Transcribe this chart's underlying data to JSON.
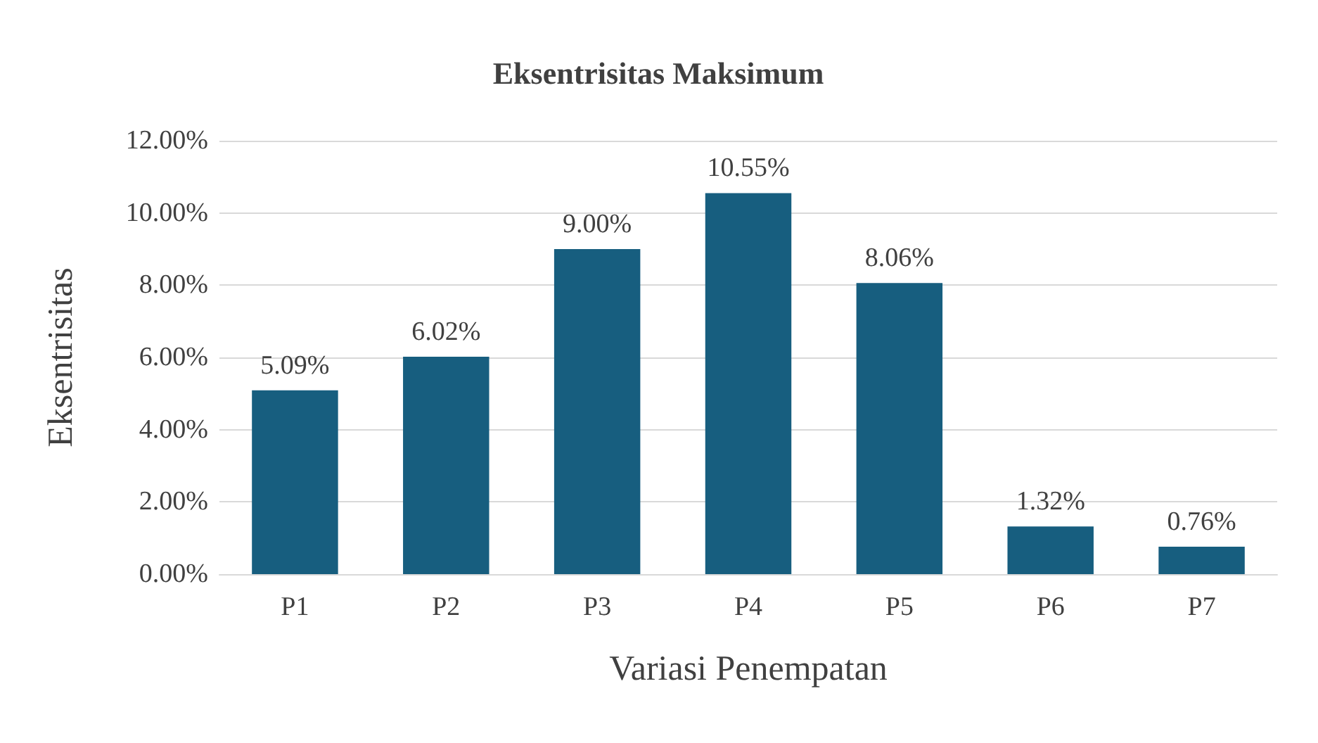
{
  "chart_data": {
    "type": "bar",
    "title": "Eksentrisitas Maksimum",
    "xlabel": "Variasi Penempatan",
    "ylabel": "Eksentrisitas",
    "categories": [
      "P1",
      "P2",
      "P3",
      "P4",
      "P5",
      "P6",
      "P7"
    ],
    "values": [
      5.09,
      6.02,
      9.0,
      10.55,
      8.06,
      1.32,
      0.76
    ],
    "value_labels": [
      "5.09%",
      "6.02%",
      "9.00%",
      "10.55%",
      "8.06%",
      "1.32%",
      "0.76%"
    ],
    "color": "#175e7f",
    "ylim": [
      0,
      12
    ],
    "yticks": [
      {
        "value": 0,
        "label": "0.00%"
      },
      {
        "value": 2,
        "label": "2.00%"
      },
      {
        "value": 4,
        "label": "4.00%"
      },
      {
        "value": 6,
        "label": "6.00%"
      },
      {
        "value": 8,
        "label": "8.00%"
      },
      {
        "value": 10,
        "label": "10.00%"
      },
      {
        "value": 12,
        "label": "12.00%"
      }
    ],
    "grid": "y"
  }
}
